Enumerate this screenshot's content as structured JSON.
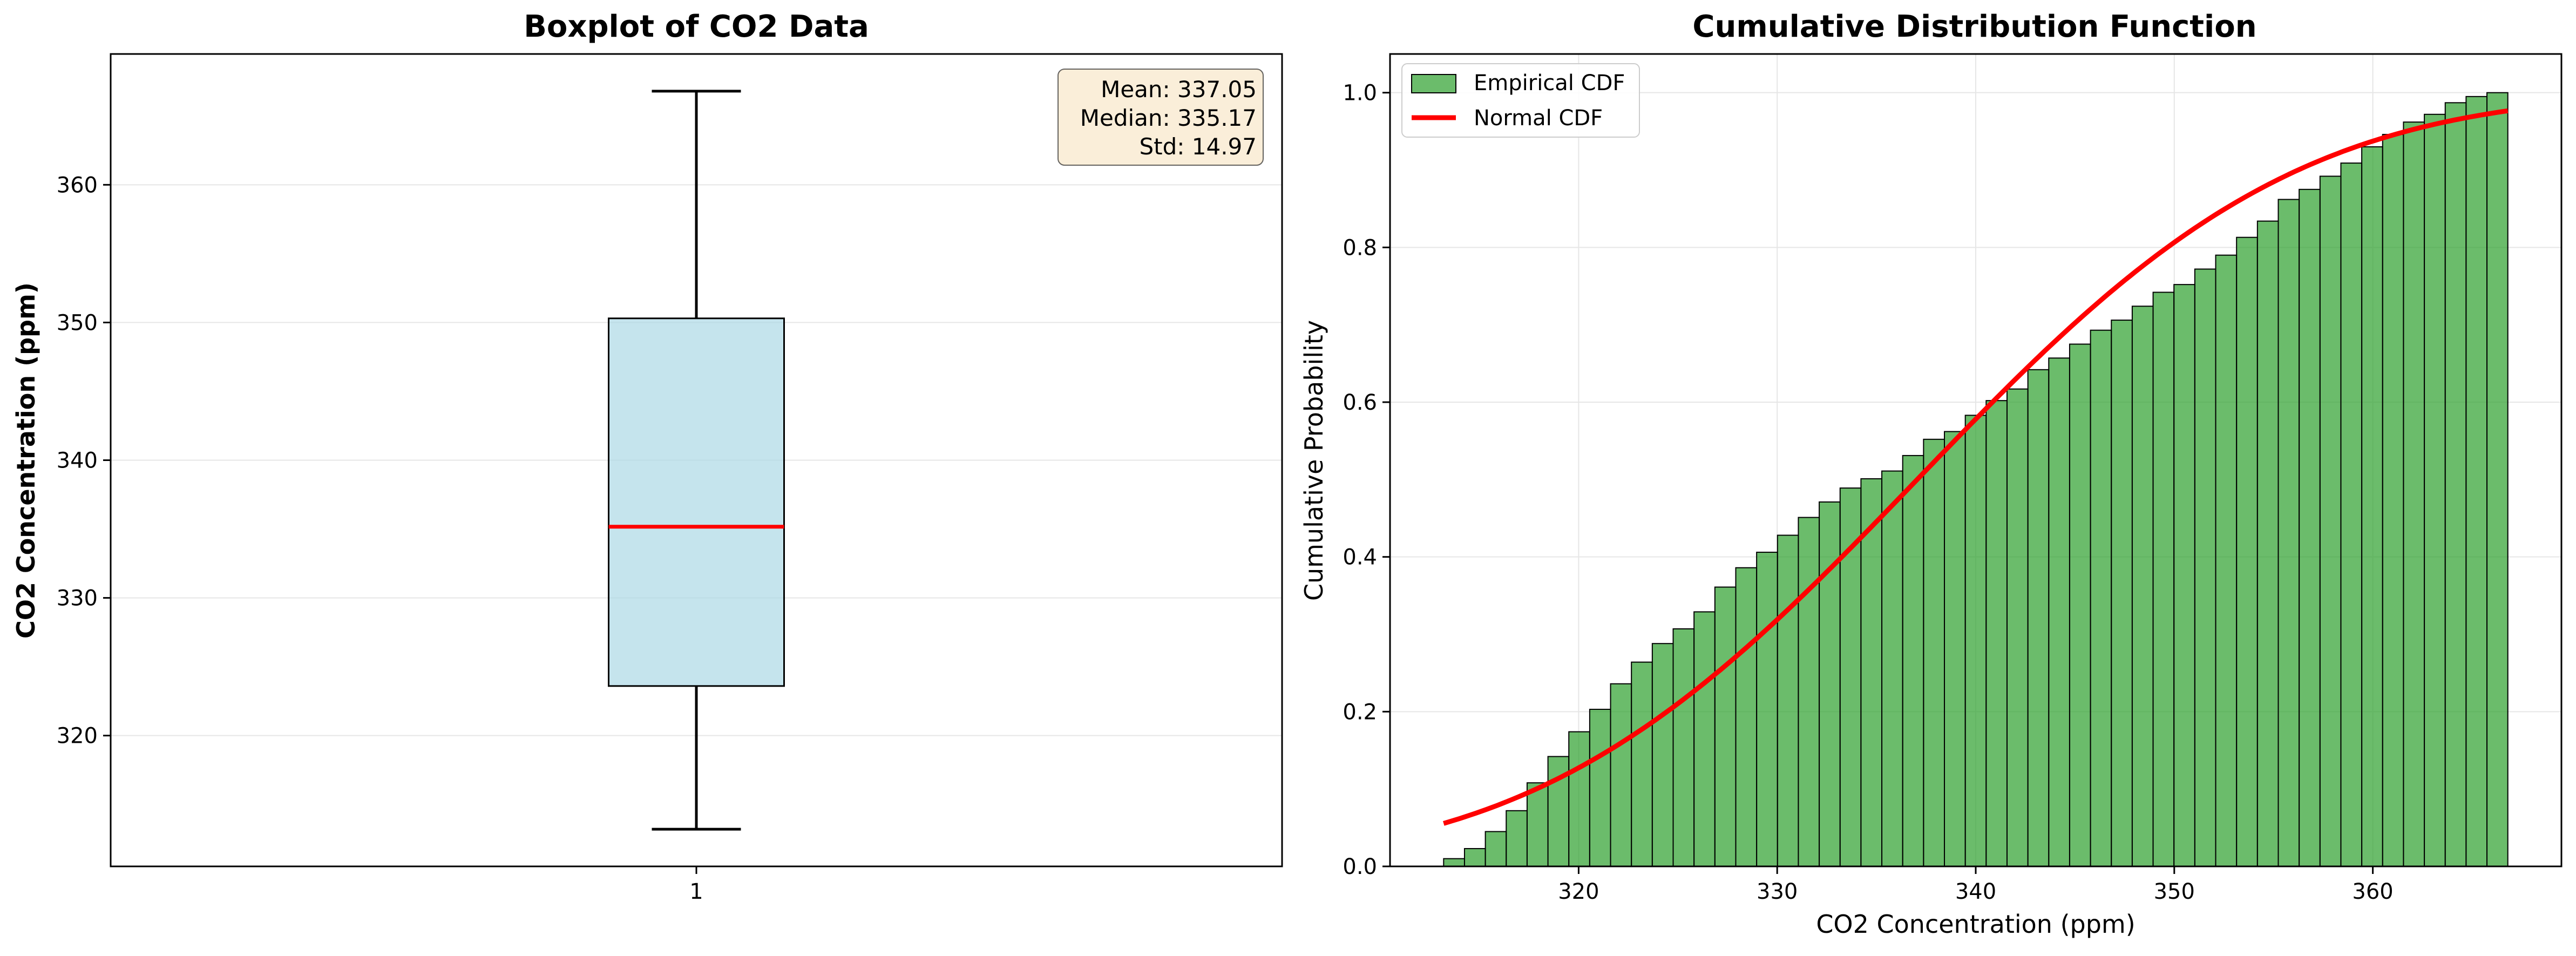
{
  "colors": {
    "box_fill": "#add8e6",
    "median_line": "#ff0000",
    "hist_fill": "#2ca02c",
    "normal_line": "#ff0000",
    "stats_box_fill": "#f5deb3",
    "grid": "#e6e6e6"
  },
  "chart_data": [
    {
      "type": "boxplot",
      "title": "Boxplot of CO2 Data",
      "xlabel": "",
      "ylabel": "CO2 Concentration (ppm)",
      "x_ticks": [
        "1"
      ],
      "y_ticks": [
        "320",
        "330",
        "340",
        "350",
        "360"
      ],
      "ylim": [
        310.5,
        369.5
      ],
      "grid": "y-only",
      "box": {
        "category": "1",
        "whisker_low": 313.2,
        "q1": 323.6,
        "median": 335.17,
        "q3": 350.3,
        "whisker_high": 366.8
      },
      "stats": [
        "Mean: 337.05",
        "Median: 335.17",
        "Std: 14.97"
      ]
    },
    {
      "type": "histogram_cdf",
      "title": "Cumulative Distribution Function",
      "xlabel": "CO2 Concentration (ppm)",
      "ylabel": "Cumulative Probability",
      "x_ticks": [
        "320",
        "330",
        "340",
        "350",
        "360"
      ],
      "y_ticks": [
        "0.0",
        "0.2",
        "0.4",
        "0.6",
        "0.8",
        "1.0"
      ],
      "xlim": [
        310.5,
        369.5
      ],
      "ylim": [
        0,
        1.05
      ],
      "grid": true,
      "legend_position": "top-left",
      "series": [
        {
          "name": "Empirical CDF",
          "kind": "bar",
          "bin_start": 313.2,
          "bin_end": 366.8,
          "values": [
            0.01,
            0.023,
            0.045,
            0.072,
            0.108,
            0.142,
            0.174,
            0.203,
            0.236,
            0.264,
            0.288,
            0.307,
            0.329,
            0.361,
            0.386,
            0.406,
            0.428,
            0.451,
            0.471,
            0.489,
            0.501,
            0.511,
            0.531,
            0.552,
            0.562,
            0.583,
            0.602,
            0.617,
            0.642,
            0.657,
            0.675,
            0.693,
            0.706,
            0.724,
            0.742,
            0.752,
            0.772,
            0.79,
            0.813,
            0.834,
            0.862,
            0.875,
            0.892,
            0.909,
            0.93,
            0.946,
            0.962,
            0.972,
            0.987,
            0.995,
            1.0
          ]
        },
        {
          "name": "Normal CDF",
          "kind": "line",
          "mean": 337.05,
          "std": 14.97,
          "x_range": [
            313.2,
            366.8
          ]
        }
      ]
    }
  ]
}
